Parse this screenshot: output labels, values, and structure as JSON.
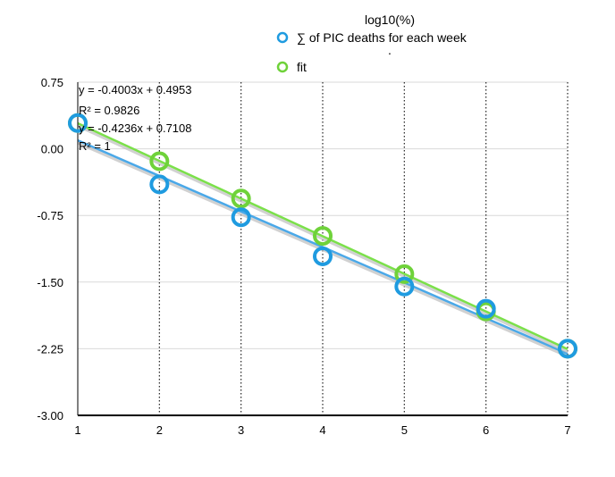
{
  "chart_data": {
    "type": "scatter",
    "title": "log10(%)",
    "xlim": [
      1,
      7
    ],
    "ylim": [
      -3.0,
      0.75
    ],
    "x_ticks": [
      "1",
      "2",
      "3",
      "4",
      "5",
      "6",
      "7"
    ],
    "y_ticks": [
      "0.75",
      "0.00",
      "-0.75",
      "-1.50",
      "-2.25",
      "-3.00"
    ],
    "grid": "vertical-dotted",
    "legend_position": "top",
    "series": [
      {
        "name": "∑ of PIC deaths for each week",
        "color": "#1f9be0",
        "x": [
          1,
          2,
          3,
          4,
          5,
          6,
          7
        ],
        "y": [
          0.29,
          -0.4,
          -0.77,
          -1.21,
          -1.55,
          -1.8,
          -2.25
        ],
        "trendline": {
          "slope": -0.4003,
          "intercept": 0.4953,
          "color": "#4aa8e8"
        }
      },
      {
        "name": "fit",
        "color": "#6fd23a",
        "x": [
          1,
          2,
          3,
          4,
          5,
          6,
          7
        ],
        "y": [
          0.29,
          -0.14,
          -0.56,
          -0.98,
          -1.41,
          -1.83,
          -2.25
        ],
        "trendline": {
          "slope": -0.4236,
          "intercept": 0.7108,
          "color": "#7be04a"
        }
      }
    ],
    "annotations": [
      "y = -0.4003x + 0.4953",
      "R² = 0.9826",
      "y = -0.4236x + 0.7108",
      "R² = 1"
    ],
    "legend_extra": "."
  }
}
